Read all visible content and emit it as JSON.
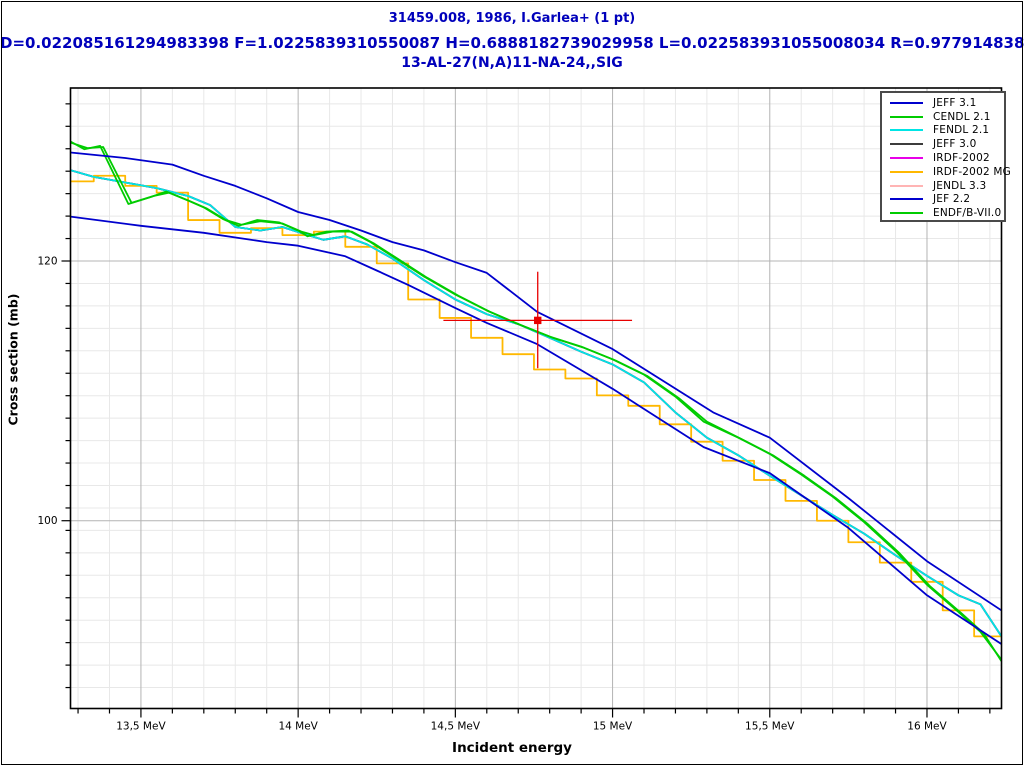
{
  "header": {
    "line1": "31459.008, 1986, I.Garlea+ (1 pt)",
    "line2": "D=0.022085161294983398 F=1.0225839310550087 H=0.6888182739029958 L=0.022583931055008034 R=0.9779148387050166",
    "line3": "13-AL-27(N,A)11-NA-24,,SIG",
    "color": "#0000bb"
  },
  "legend": {
    "entries": [
      {
        "label": "JEFF 3.1",
        "color": "#0000cd"
      },
      {
        "label": "CENDL 2.1",
        "color": "#00cc00"
      },
      {
        "label": "FENDL 2.1",
        "color": "#00e5e5"
      },
      {
        "label": "JEFF 3.0",
        "color": "#3c3c3c"
      },
      {
        "label": "IRDF-2002",
        "color": "#e800e8"
      },
      {
        "label": "IRDF-2002 MG",
        "color": "#ffb800"
      },
      {
        "label": "JENDL 3.3",
        "color": "#ffb4b4"
      },
      {
        "label": "JEF 2.2",
        "color": "#0000cd"
      },
      {
        "label": "ENDF/B-VII.0",
        "color": "#00cc00"
      }
    ]
  },
  "chart_data": {
    "type": "line",
    "title": "13-AL-27(N,A)11-NA-24,,SIG",
    "xlabel": "Incident energy",
    "ylabel": "Cross section (mb)",
    "x_axis": {
      "unit": "MeV",
      "scale": "linear",
      "min": 13.276,
      "max": 16.237,
      "minor_tick_step": 0.1,
      "major_ticks": [
        {
          "value": 13.5,
          "label": "13,5 MeV"
        },
        {
          "value": 14.0,
          "label": "14 MeV"
        },
        {
          "value": 14.5,
          "label": "14,5 MeV"
        },
        {
          "value": 15.0,
          "label": "15 MeV"
        },
        {
          "value": 15.5,
          "label": "15,5 MeV"
        },
        {
          "value": 16.0,
          "label": "16 MeV"
        }
      ]
    },
    "y_axis": {
      "unit": "mb",
      "scale": "log",
      "min": 87.6,
      "max": 135.5,
      "major_ticks": [
        {
          "value": 120,
          "label": "120"
        },
        {
          "value": 100,
          "label": "100"
        }
      ]
    },
    "grid": {
      "minor_color": "#e8e8e8",
      "major_color": "#b4b4b4",
      "grid_on": true
    },
    "series": [
      {
        "name": "JENDL 3.3",
        "color": "#ffb4b4",
        "render": "line",
        "points": [
          [
            13.276,
            127.9
          ],
          [
            13.35,
            127.3
          ],
          [
            13.45,
            126.8
          ],
          [
            13.55,
            126.3
          ],
          [
            13.65,
            125.6
          ],
          [
            13.72,
            124.8
          ],
          [
            13.8,
            122.9
          ],
          [
            13.88,
            122.6
          ],
          [
            13.95,
            122.9
          ],
          [
            14.02,
            122.3
          ],
          [
            14.08,
            121.8
          ],
          [
            14.15,
            122.1
          ],
          [
            14.22,
            121.4
          ],
          [
            14.3,
            120.2
          ],
          [
            14.4,
            118.4
          ],
          [
            14.5,
            116.8
          ],
          [
            14.6,
            115.6
          ],
          [
            14.7,
            114.8
          ],
          [
            14.8,
            113.7
          ],
          [
            14.9,
            112.6
          ],
          [
            15.0,
            111.6
          ],
          [
            15.1,
            110.2
          ],
          [
            15.2,
            107.9
          ],
          [
            15.3,
            106.0
          ],
          [
            15.4,
            104.7
          ],
          [
            15.5,
            103.2
          ],
          [
            15.6,
            101.8
          ],
          [
            15.7,
            100.4
          ],
          [
            15.8,
            99.1
          ],
          [
            15.9,
            97.6
          ],
          [
            16.0,
            96.2
          ],
          [
            16.1,
            94.9
          ],
          [
            16.17,
            94.3
          ],
          [
            16.237,
            92.2
          ]
        ]
      },
      {
        "name": "IRDF-2002",
        "color": "#e800e8",
        "render": "line",
        "points": [
          [
            13.276,
            127.9
          ],
          [
            13.35,
            127.3
          ],
          [
            13.45,
            126.8
          ],
          [
            13.55,
            126.3
          ],
          [
            13.65,
            125.6
          ],
          [
            13.72,
            124.8
          ],
          [
            13.8,
            122.9
          ],
          [
            13.88,
            122.6
          ],
          [
            13.95,
            122.9
          ],
          [
            14.02,
            122.3
          ],
          [
            14.08,
            121.8
          ],
          [
            14.15,
            122.1
          ],
          [
            14.22,
            121.4
          ],
          [
            14.3,
            120.2
          ],
          [
            14.4,
            118.4
          ],
          [
            14.5,
            116.8
          ],
          [
            14.6,
            115.6
          ],
          [
            14.7,
            114.8
          ],
          [
            14.8,
            113.7
          ],
          [
            14.9,
            112.6
          ],
          [
            15.0,
            111.6
          ],
          [
            15.1,
            110.2
          ],
          [
            15.2,
            107.9
          ],
          [
            15.3,
            106.0
          ],
          [
            15.4,
            104.7
          ],
          [
            15.5,
            103.2
          ],
          [
            15.6,
            101.8
          ],
          [
            15.7,
            100.4
          ],
          [
            15.8,
            99.1
          ],
          [
            15.9,
            97.6
          ],
          [
            16.0,
            96.2
          ],
          [
            16.1,
            94.9
          ],
          [
            16.17,
            94.3
          ],
          [
            16.237,
            92.2
          ]
        ]
      },
      {
        "name": "JEFF 3.0",
        "color": "#3c3c3c",
        "render": "line",
        "points": [
          [
            13.276,
            127.9
          ],
          [
            13.35,
            127.3
          ],
          [
            13.45,
            126.8
          ],
          [
            13.55,
            126.3
          ],
          [
            13.65,
            125.6
          ],
          [
            13.72,
            124.8
          ],
          [
            13.8,
            122.9
          ],
          [
            13.88,
            122.6
          ],
          [
            13.95,
            122.9
          ],
          [
            14.02,
            122.3
          ],
          [
            14.08,
            121.8
          ],
          [
            14.15,
            122.1
          ],
          [
            14.22,
            121.4
          ],
          [
            14.3,
            120.2
          ],
          [
            14.4,
            118.4
          ],
          [
            14.5,
            116.8
          ],
          [
            14.6,
            115.6
          ],
          [
            14.7,
            114.8
          ],
          [
            14.8,
            113.7
          ],
          [
            14.9,
            112.6
          ],
          [
            15.0,
            111.6
          ],
          [
            15.1,
            110.2
          ],
          [
            15.2,
            107.9
          ],
          [
            15.3,
            106.0
          ],
          [
            15.4,
            104.7
          ],
          [
            15.5,
            103.2
          ],
          [
            15.6,
            101.8
          ],
          [
            15.7,
            100.4
          ],
          [
            15.8,
            99.1
          ],
          [
            15.9,
            97.6
          ],
          [
            16.0,
            96.2
          ],
          [
            16.1,
            94.9
          ],
          [
            16.17,
            94.3
          ],
          [
            16.237,
            92.2
          ]
        ]
      },
      {
        "name": "IRDF-2002 MG",
        "color": "#ffb800",
        "render": "steps",
        "edges": [
          13.276,
          13.35,
          13.45,
          13.55,
          13.65,
          13.75,
          13.85,
          13.95,
          14.05,
          14.15,
          14.25,
          14.35,
          14.45,
          14.55,
          14.65,
          14.75,
          14.85,
          14.95,
          15.05,
          15.15,
          15.25,
          15.35,
          15.45,
          15.55,
          15.65,
          15.75,
          15.85,
          15.95,
          16.05,
          16.15,
          16.237
        ],
        "values": [
          126.9,
          127.4,
          126.5,
          125.9,
          123.5,
          122.4,
          122.8,
          122.2,
          122.5,
          121.2,
          119.8,
          116.8,
          115.3,
          113.7,
          112.4,
          111.2,
          110.5,
          109.2,
          108.4,
          107.0,
          105.7,
          104.3,
          102.9,
          101.4,
          100.0,
          98.5,
          97.1,
          95.8,
          93.9,
          92.2
        ]
      },
      {
        "name": "FENDL 2.1",
        "color": "#00e5e5",
        "render": "line",
        "points": [
          [
            13.276,
            127.9
          ],
          [
            13.35,
            127.3
          ],
          [
            13.45,
            126.8
          ],
          [
            13.55,
            126.3
          ],
          [
            13.65,
            125.6
          ],
          [
            13.72,
            124.8
          ],
          [
            13.8,
            122.9
          ],
          [
            13.88,
            122.6
          ],
          [
            13.95,
            122.9
          ],
          [
            14.02,
            122.3
          ],
          [
            14.08,
            121.8
          ],
          [
            14.15,
            122.1
          ],
          [
            14.22,
            121.4
          ],
          [
            14.3,
            120.2
          ],
          [
            14.4,
            118.4
          ],
          [
            14.5,
            116.8
          ],
          [
            14.6,
            115.6
          ],
          [
            14.7,
            114.8
          ],
          [
            14.8,
            113.7
          ],
          [
            14.9,
            112.6
          ],
          [
            15.0,
            111.6
          ],
          [
            15.1,
            110.2
          ],
          [
            15.2,
            107.9
          ],
          [
            15.3,
            106.0
          ],
          [
            15.4,
            104.7
          ],
          [
            15.5,
            103.2
          ],
          [
            15.6,
            101.8
          ],
          [
            15.7,
            100.4
          ],
          [
            15.8,
            99.1
          ],
          [
            15.9,
            97.6
          ],
          [
            16.0,
            96.2
          ],
          [
            16.1,
            94.9
          ],
          [
            16.17,
            94.3
          ],
          [
            16.237,
            92.2
          ]
        ]
      },
      {
        "name": "ENDF/B-VII.0",
        "color": "#00cc00",
        "render": "line",
        "points": [
          [
            13.276,
            130.4
          ],
          [
            13.33,
            129.9
          ],
          [
            13.38,
            130.0
          ],
          [
            13.47,
            125.0
          ],
          [
            13.54,
            125.6
          ],
          [
            13.59,
            125.9
          ],
          [
            13.66,
            125.1
          ],
          [
            13.71,
            124.5
          ],
          [
            13.77,
            123.5
          ],
          [
            13.82,
            123.1
          ],
          [
            13.88,
            123.4
          ],
          [
            13.95,
            123.2
          ],
          [
            14.01,
            122.5
          ],
          [
            14.05,
            122.2
          ],
          [
            14.11,
            122.5
          ],
          [
            14.17,
            122.5
          ],
          [
            14.24,
            121.5
          ],
          [
            14.31,
            120.3
          ],
          [
            14.41,
            118.6
          ],
          [
            14.51,
            117.1
          ],
          [
            14.61,
            115.8
          ],
          [
            14.71,
            114.7
          ],
          [
            14.81,
            113.7
          ],
          [
            14.91,
            112.9
          ],
          [
            15.01,
            111.9
          ],
          [
            15.11,
            110.7
          ],
          [
            15.21,
            109.0
          ],
          [
            15.3,
            107.2
          ],
          [
            15.41,
            105.9
          ],
          [
            15.51,
            104.7
          ],
          [
            15.61,
            103.2
          ],
          [
            15.71,
            101.6
          ],
          [
            15.81,
            99.8
          ],
          [
            15.91,
            97.8
          ],
          [
            16.01,
            95.5
          ],
          [
            16.11,
            93.7
          ],
          [
            16.18,
            92.4
          ],
          [
            16.237,
            90.6
          ]
        ]
      },
      {
        "name": "CENDL 2.1",
        "color": "#00cc00",
        "render": "line",
        "points": [
          [
            13.276,
            130.5
          ],
          [
            13.32,
            129.8
          ],
          [
            13.37,
            130.1
          ],
          [
            13.46,
            124.9
          ],
          [
            13.53,
            125.5
          ],
          [
            13.58,
            126.0
          ],
          [
            13.65,
            125.2
          ],
          [
            13.7,
            124.6
          ],
          [
            13.76,
            123.6
          ],
          [
            13.81,
            123.0
          ],
          [
            13.87,
            123.5
          ],
          [
            13.94,
            123.3
          ],
          [
            14.0,
            122.6
          ],
          [
            14.03,
            122.1
          ],
          [
            14.09,
            122.5
          ],
          [
            14.16,
            122.6
          ],
          [
            14.23,
            121.6
          ],
          [
            14.3,
            120.4
          ],
          [
            14.4,
            118.7
          ],
          [
            14.5,
            117.2
          ],
          [
            14.6,
            115.9
          ],
          [
            14.7,
            114.8
          ],
          [
            14.8,
            113.8
          ],
          [
            14.9,
            113.0
          ],
          [
            15.0,
            112.0
          ],
          [
            15.1,
            110.8
          ],
          [
            15.2,
            109.1
          ],
          [
            15.29,
            107.2
          ],
          [
            15.4,
            106.0
          ],
          [
            15.5,
            104.8
          ],
          [
            15.6,
            103.3
          ],
          [
            15.7,
            101.7
          ],
          [
            15.8,
            99.9
          ],
          [
            15.9,
            97.9
          ],
          [
            16.0,
            95.6
          ],
          [
            16.1,
            93.8
          ],
          [
            16.17,
            92.5
          ],
          [
            16.237,
            90.7
          ]
        ]
      },
      {
        "name": "JEF 2.2",
        "color": "#0000cd",
        "render": "line",
        "points": [
          [
            13.276,
            123.8
          ],
          [
            13.5,
            123.0
          ],
          [
            13.7,
            122.4
          ],
          [
            13.9,
            121.6
          ],
          [
            14.0,
            121.3
          ],
          [
            14.1,
            120.7
          ],
          [
            14.15,
            120.4
          ],
          [
            14.25,
            119.2
          ],
          [
            14.35,
            118.0
          ],
          [
            14.5,
            116.1
          ],
          [
            14.6,
            114.9
          ],
          [
            14.76,
            113.2
          ],
          [
            15.0,
            109.7
          ],
          [
            15.29,
            105.3
          ],
          [
            15.5,
            103.4
          ],
          [
            15.75,
            99.5
          ],
          [
            16.0,
            94.9
          ],
          [
            16.237,
            91.7
          ]
        ]
      },
      {
        "name": "JEFF 3.1",
        "color": "#0000cd",
        "render": "line",
        "points": [
          [
            13.276,
            129.5
          ],
          [
            13.45,
            129.0
          ],
          [
            13.6,
            128.4
          ],
          [
            13.7,
            127.4
          ],
          [
            13.8,
            126.5
          ],
          [
            13.9,
            125.4
          ],
          [
            14.0,
            124.2
          ],
          [
            14.1,
            123.5
          ],
          [
            14.2,
            122.6
          ],
          [
            14.3,
            121.6
          ],
          [
            14.4,
            120.9
          ],
          [
            14.5,
            119.9
          ],
          [
            14.6,
            119.0
          ],
          [
            14.76,
            115.8
          ],
          [
            15.0,
            112.8
          ],
          [
            15.32,
            107.9
          ],
          [
            15.5,
            106.0
          ],
          [
            15.75,
            101.6
          ],
          [
            16.0,
            97.2
          ],
          [
            16.237,
            93.9
          ]
        ]
      }
    ],
    "experiment_point": {
      "label": "31459.008, 1986, I.Garlea+",
      "E": 14.762,
      "E_err": 0.3,
      "value": 115.1,
      "err_plus": 4.0,
      "err_minus": 3.8,
      "color": "#e80000"
    },
    "legend_position": "top-right"
  }
}
